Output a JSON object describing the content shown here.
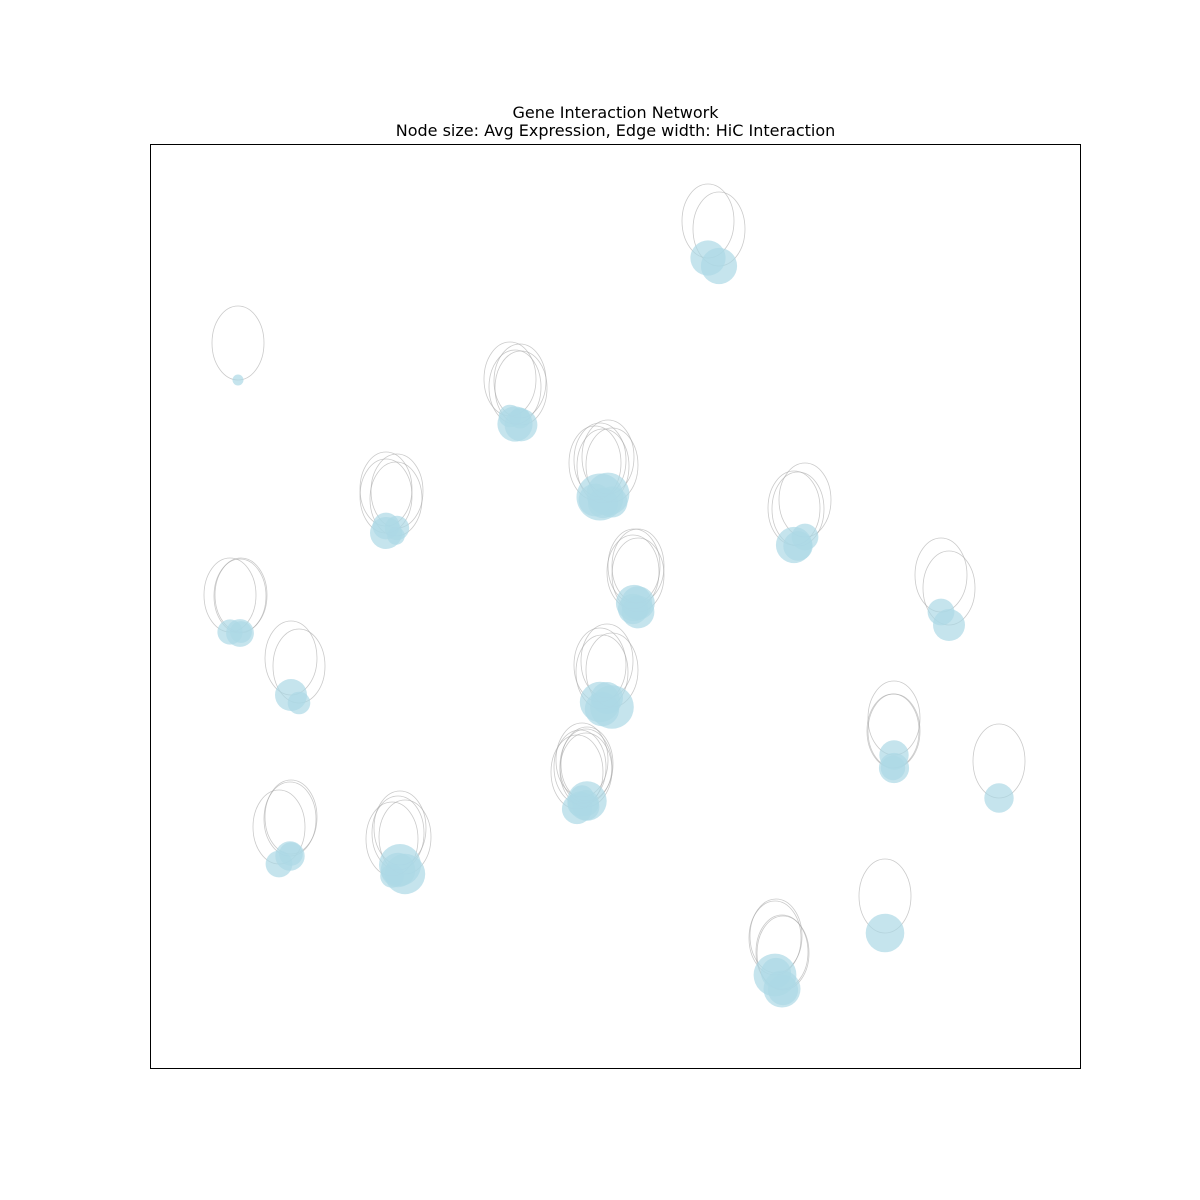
{
  "figure": {
    "title": "Gene Interaction Network",
    "subtitle": "Node size: Avg Expression, Edge width: HiC Interaction"
  },
  "style": {
    "node_color": "#add8e6",
    "edge_color": "#a6a6a6",
    "frame_color": "#000000"
  },
  "chart_data": {
    "type": "network",
    "nodes": [
      {
        "id": 1,
        "expression": 4.2
      },
      {
        "id": 2,
        "expression": 4.3
      },
      {
        "id": 3,
        "expression": 1.3
      },
      {
        "id": 4,
        "expression": 2.7
      },
      {
        "id": 5,
        "expression": 4.2
      },
      {
        "id": 6,
        "expression": 3.9
      },
      {
        "id": 7,
        "expression": 2.5
      },
      {
        "id": 8,
        "expression": 5.6
      },
      {
        "id": 9,
        "expression": 5.1
      },
      {
        "id": 10,
        "expression": 3.7
      },
      {
        "id": 11,
        "expression": 3.6
      },
      {
        "id": 12,
        "expression": 3.2
      },
      {
        "id": 13,
        "expression": 2.9
      },
      {
        "id": 14,
        "expression": 2.1
      },
      {
        "id": 15,
        "expression": 3.8
      },
      {
        "id": 16,
        "expression": 4.3
      },
      {
        "id": 17,
        "expression": 3.2
      },
      {
        "id": 18,
        "expression": 3.5
      },
      {
        "id": 19,
        "expression": 4.3
      },
      {
        "id": 20,
        "expression": 3.9
      },
      {
        "id": 21,
        "expression": 4.0
      },
      {
        "id": 22,
        "expression": 3.6
      },
      {
        "id": 23,
        "expression": 3.2
      },
      {
        "id": 24,
        "expression": 3.8
      },
      {
        "id": 25,
        "expression": 3.0
      },
      {
        "id": 26,
        "expression": 2.6
      },
      {
        "id": 27,
        "expression": 3.8
      },
      {
        "id": 28,
        "expression": 2.7
      },
      {
        "id": 29,
        "expression": 4.8
      },
      {
        "id": 30,
        "expression": 5.2
      },
      {
        "id": 31,
        "expression": 3.8
      },
      {
        "id": 32,
        "expression": 4.1
      },
      {
        "id": 33,
        "expression": 3.5
      },
      {
        "id": 34,
        "expression": 3.6
      },
      {
        "id": 35,
        "expression": 3.0
      },
      {
        "id": 36,
        "expression": 4.7
      },
      {
        "id": 37,
        "expression": 3.2
      },
      {
        "id": 38,
        "expression": 3.6
      },
      {
        "id": 39,
        "expression": 2.8
      },
      {
        "id": 40,
        "expression": 3.5
      },
      {
        "id": 41,
        "expression": 2.8
      },
      {
        "id": 42,
        "expression": 3.2
      },
      {
        "id": 43,
        "expression": 5.0
      },
      {
        "id": 44,
        "expression": 4.8
      },
      {
        "id": 45,
        "expression": 2.8
      },
      {
        "id": 46,
        "expression": 4.6
      },
      {
        "id": 47,
        "expression": 3.6
      },
      {
        "id": 48,
        "expression": 4.4
      },
      {
        "id": 49,
        "expression": 5.1
      },
      {
        "id": 50,
        "expression": 3.6
      },
      {
        "id": 51,
        "expression": 3.5
      },
      {
        "id": 52,
        "expression": 3.3
      },
      {
        "id": 53,
        "expression": 2.9
      },
      {
        "id": 54,
        "expression": 3.9
      },
      {
        "id": 55,
        "expression": 4.1
      },
      {
        "id": 56,
        "expression": 3.1
      }
    ],
    "edges": [
      {
        "node": 1,
        "hic": 0.8
      },
      {
        "node": 2,
        "hic": 0.8
      },
      {
        "node": 3,
        "hic": 0.8
      },
      {
        "node": 4,
        "hic": 0.8
      },
      {
        "node": 5,
        "hic": 0.8
      },
      {
        "node": 6,
        "hic": 0.8
      },
      {
        "node": 7,
        "hic": 0.8
      },
      {
        "node": 8,
        "hic": 0.8
      },
      {
        "node": 9,
        "hic": 0.8
      },
      {
        "node": 10,
        "hic": 0.8
      },
      {
        "node": 11,
        "hic": 0.8
      },
      {
        "node": 12,
        "hic": 0.8
      },
      {
        "node": 13,
        "hic": 0.8
      },
      {
        "node": 14,
        "hic": 0.8
      },
      {
        "node": 15,
        "hic": 0.8
      },
      {
        "node": 16,
        "hic": 0.8
      },
      {
        "node": 17,
        "hic": 0.8
      },
      {
        "node": 18,
        "hic": 0.8
      },
      {
        "node": 19,
        "hic": 0.8
      },
      {
        "node": 20,
        "hic": 0.8
      },
      {
        "node": 21,
        "hic": 0.8
      },
      {
        "node": 22,
        "hic": 0.8
      },
      {
        "node": 23,
        "hic": 0.8
      },
      {
        "node": 24,
        "hic": 0.8
      },
      {
        "node": 25,
        "hic": 0.8
      },
      {
        "node": 26,
        "hic": 0.8
      },
      {
        "node": 27,
        "hic": 0.8
      },
      {
        "node": 28,
        "hic": 0.8
      },
      {
        "node": 29,
        "hic": 0.8
      },
      {
        "node": 30,
        "hic": 0.8
      },
      {
        "node": 31,
        "hic": 0.8
      },
      {
        "node": 32,
        "hic": 0.8
      },
      {
        "node": 33,
        "hic": 0.8
      },
      {
        "node": 34,
        "hic": 0.8
      },
      {
        "node": 35,
        "hic": 0.8
      },
      {
        "node": 36,
        "hic": 0.8
      },
      {
        "node": 37,
        "hic": 0.8
      },
      {
        "node": 38,
        "hic": 0.8
      },
      {
        "node": 39,
        "hic": 0.8
      },
      {
        "node": 40,
        "hic": 0.8
      },
      {
        "node": 41,
        "hic": 0.8
      },
      {
        "node": 42,
        "hic": 0.8
      },
      {
        "node": 43,
        "hic": 0.8
      },
      {
        "node": 44,
        "hic": 0.8
      },
      {
        "node": 45,
        "hic": 0.8
      },
      {
        "node": 46,
        "hic": 0.8
      },
      {
        "node": 47,
        "hic": 0.8
      },
      {
        "node": 48,
        "hic": 0.8
      },
      {
        "node": 49,
        "hic": 0.8
      },
      {
        "node": 50,
        "hic": 0.8
      },
      {
        "node": 51,
        "hic": 0.8
      },
      {
        "node": 52,
        "hic": 0.8
      },
      {
        "node": 53,
        "hic": 0.8
      },
      {
        "node": 54,
        "hic": 0.8
      },
      {
        "node": 55,
        "hic": 0.8
      },
      {
        "node": 56,
        "hic": 0.8
      }
    ]
  }
}
